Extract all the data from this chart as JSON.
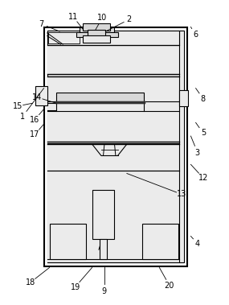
{
  "bg_color": "#ffffff",
  "line_color": "#000000",
  "gray_fill": "#d8d8d8",
  "light_fill": "#ebebeb",
  "fig_width": 2.85,
  "fig_height": 3.79,
  "label_fs": 7.0,
  "label_positions": {
    "1": [
      0.09,
      0.62,
      0.185,
      0.715
    ],
    "2": [
      0.565,
      0.945,
      0.46,
      0.905
    ],
    "3": [
      0.87,
      0.5,
      0.84,
      0.555
    ],
    "4": [
      0.87,
      0.195,
      0.84,
      0.22
    ],
    "5": [
      0.895,
      0.565,
      0.862,
      0.6
    ],
    "6": [
      0.86,
      0.895,
      0.84,
      0.92
    ],
    "7": [
      0.175,
      0.93,
      0.255,
      0.905
    ],
    "8": [
      0.895,
      0.68,
      0.862,
      0.715
    ],
    "9": [
      0.455,
      0.035,
      0.455,
      0.115
    ],
    "10": [
      0.445,
      0.95,
      0.415,
      0.91
    ],
    "11": [
      0.315,
      0.955,
      0.36,
      0.912
    ],
    "12": [
      0.895,
      0.415,
      0.84,
      0.46
    ],
    "13": [
      0.8,
      0.36,
      0.555,
      0.43
    ],
    "14": [
      0.155,
      0.685,
      0.24,
      0.665
    ],
    "15": [
      0.068,
      0.655,
      0.135,
      0.665
    ],
    "16": [
      0.145,
      0.61,
      0.185,
      0.645
    ],
    "17": [
      0.145,
      0.56,
      0.185,
      0.595
    ],
    "18": [
      0.125,
      0.065,
      0.21,
      0.115
    ],
    "19": [
      0.325,
      0.05,
      0.4,
      0.115
    ],
    "20": [
      0.745,
      0.055,
      0.7,
      0.115
    ]
  }
}
